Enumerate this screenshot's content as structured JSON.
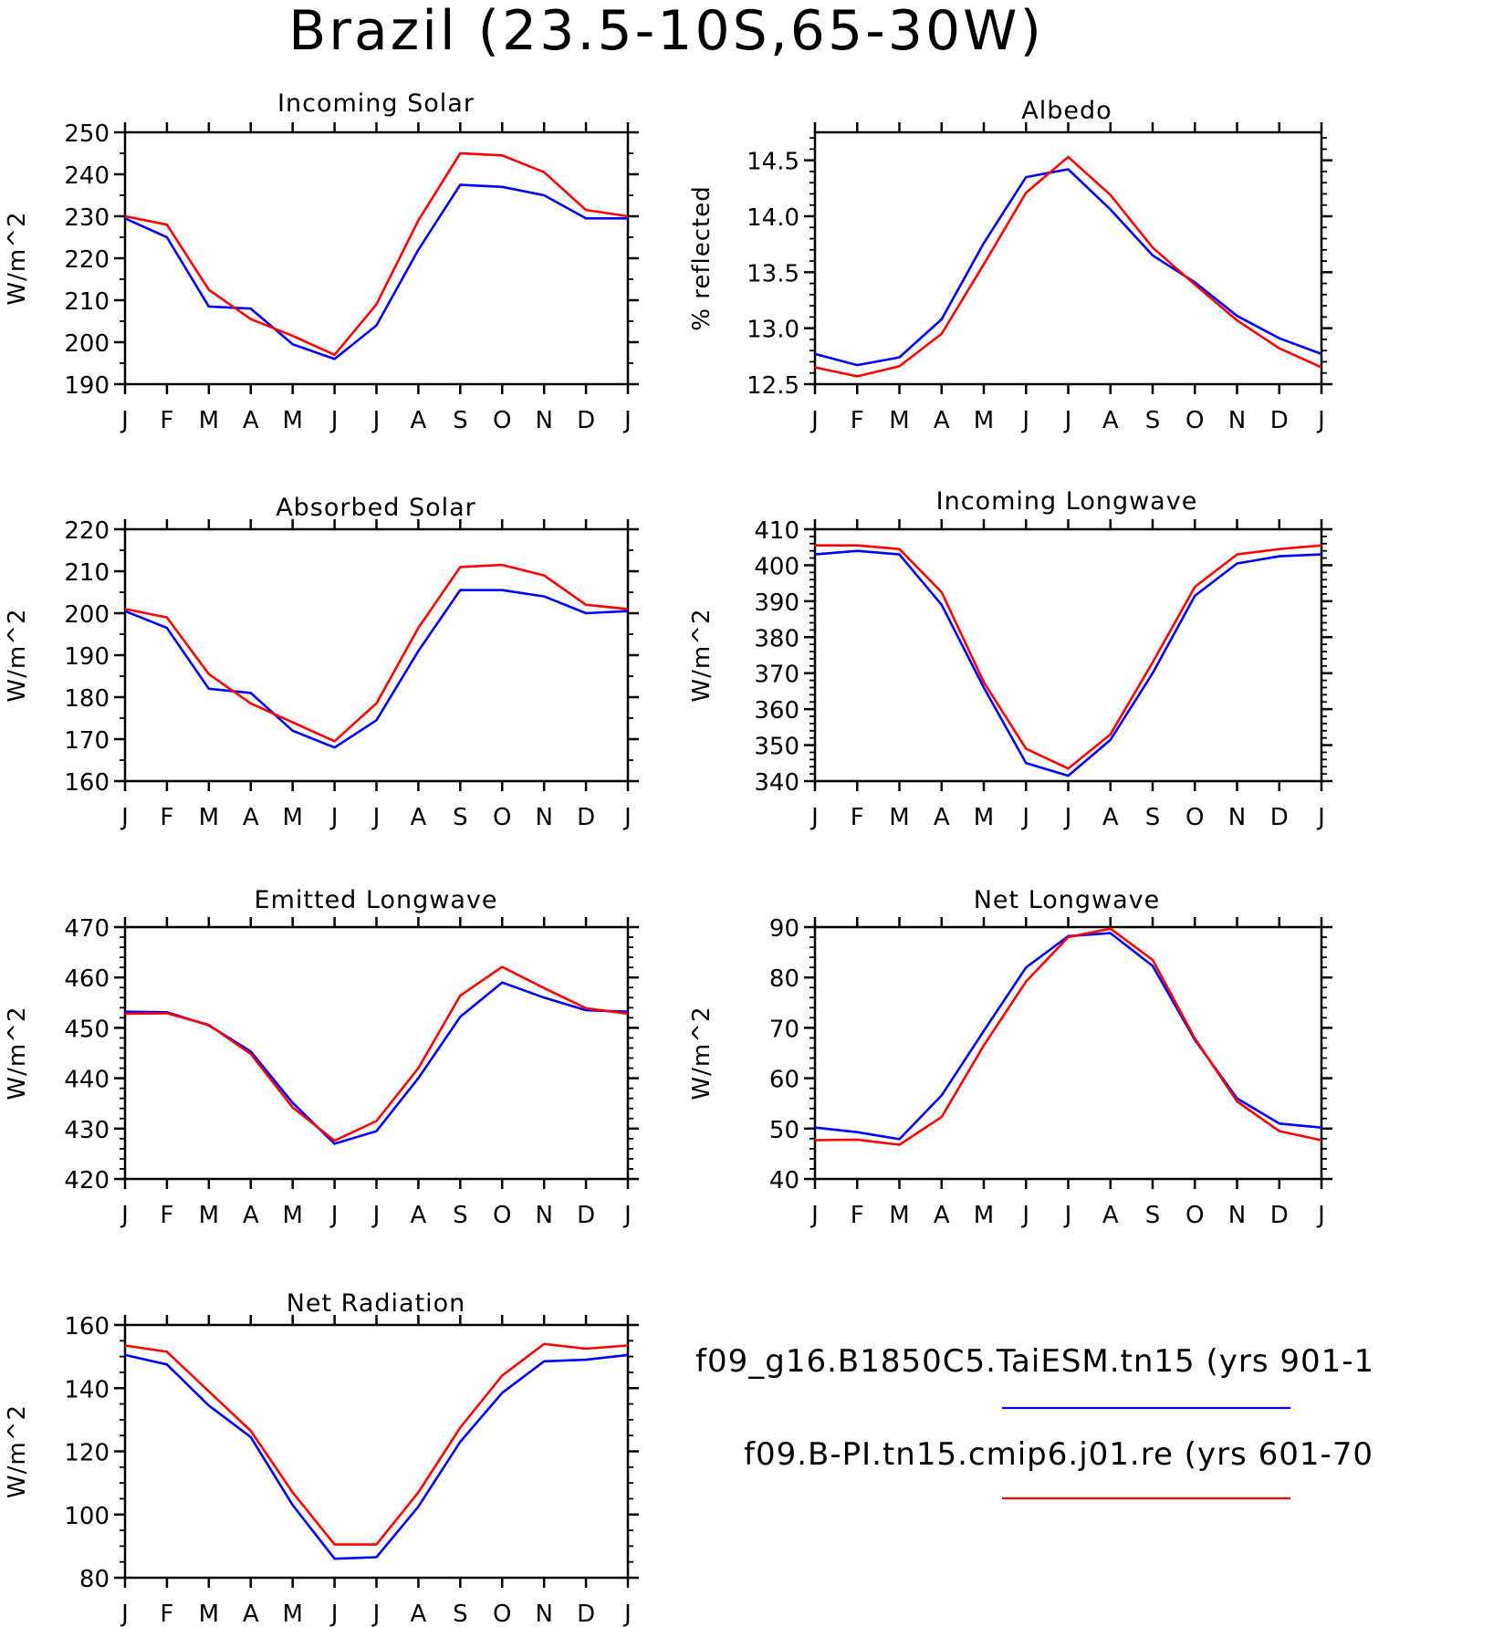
{
  "title": "Brazil (23.5-10S,65-30W)",
  "legend": [
    {
      "label": "f09_g16.B1850C5.TaiESM.tn15 (yrs 901-1",
      "color": "#0000ff"
    },
    {
      "label": "f09.B-PI.tn15.cmip6.j01.re (yrs 601-70",
      "color": "#ff0000"
    }
  ],
  "chart_data": [
    {
      "type": "line",
      "title": "Incoming Solar",
      "ylabel": "W/m^2",
      "categories": [
        "J",
        "F",
        "M",
        "A",
        "M",
        "J",
        "J",
        "A",
        "S",
        "O",
        "N",
        "D",
        "J"
      ],
      "ylim": [
        190,
        250
      ],
      "yticks": [
        "190",
        "200",
        "210",
        "220",
        "230",
        "240",
        "250"
      ],
      "yminor": 5,
      "series": [
        {
          "color": "#0000ff",
          "values": [
            229.5,
            225,
            208.5,
            208,
            199.5,
            196,
            204,
            222,
            237.5,
            237,
            235,
            229.5,
            229.5
          ]
        },
        {
          "color": "#ff0000",
          "values": [
            230,
            228,
            212.5,
            205.5,
            201.5,
            197,
            209,
            229,
            245,
            244.5,
            240.5,
            231.5,
            230
          ]
        }
      ]
    },
    {
      "type": "line",
      "title": "Albedo",
      "ylabel": "% reflected",
      "categories": [
        "J",
        "F",
        "M",
        "A",
        "M",
        "J",
        "J",
        "A",
        "S",
        "O",
        "N",
        "D",
        "J"
      ],
      "ylim": [
        12.5,
        14.75
      ],
      "yticks": [
        "12.5",
        "13.0",
        "13.5",
        "14.0",
        "14.5"
      ],
      "yminor": 0.1,
      "series": [
        {
          "color": "#0000ff",
          "values": [
            12.77,
            12.67,
            12.74,
            13.08,
            13.76,
            14.35,
            14.42,
            14.06,
            13.65,
            13.41,
            13.11,
            12.91,
            12.77
          ]
        },
        {
          "color": "#ff0000",
          "values": [
            12.65,
            12.57,
            12.66,
            12.95,
            13.57,
            14.21,
            14.53,
            14.19,
            13.72,
            13.39,
            13.07,
            12.82,
            12.65
          ]
        }
      ]
    },
    {
      "type": "line",
      "title": "Absorbed Solar",
      "ylabel": "W/m^2",
      "categories": [
        "J",
        "F",
        "M",
        "A",
        "M",
        "J",
        "J",
        "A",
        "S",
        "O",
        "N",
        "D",
        "J"
      ],
      "ylim": [
        160,
        220
      ],
      "yticks": [
        "160",
        "170",
        "180",
        "190",
        "200",
        "210",
        "220"
      ],
      "yminor": 5,
      "series": [
        {
          "color": "#0000ff",
          "values": [
            200.5,
            196.5,
            182,
            181,
            172,
            168,
            174.5,
            191,
            205.5,
            205.5,
            204,
            200,
            200.5
          ]
        },
        {
          "color": "#ff0000",
          "values": [
            201,
            199,
            185.5,
            178.5,
            174,
            169.5,
            178.5,
            196.5,
            211,
            211.5,
            209,
            202,
            201
          ]
        }
      ]
    },
    {
      "type": "line",
      "title": "Incoming Longwave",
      "ylabel": "W/m^2",
      "categories": [
        "J",
        "F",
        "M",
        "A",
        "M",
        "J",
        "J",
        "A",
        "S",
        "O",
        "N",
        "D",
        "J"
      ],
      "ylim": [
        340,
        410
      ],
      "yticks": [
        "340",
        "350",
        "360",
        "370",
        "380",
        "390",
        "400",
        "410"
      ],
      "yminor": 2,
      "series": [
        {
          "color": "#0000ff",
          "values": [
            403,
            404,
            403,
            389,
            366,
            345,
            341.5,
            351.5,
            370,
            391.5,
            400.5,
            402.5,
            403
          ]
        },
        {
          "color": "#ff0000",
          "values": [
            405.5,
            405.5,
            404.5,
            392.5,
            367.5,
            349,
            343.5,
            353,
            373,
            394,
            403,
            404.5,
            405.5
          ]
        }
      ]
    },
    {
      "type": "line",
      "title": "Emitted Longwave",
      "ylabel": "W/m^2",
      "categories": [
        "J",
        "F",
        "M",
        "A",
        "M",
        "J",
        "J",
        "A",
        "S",
        "O",
        "N",
        "D",
        "J"
      ],
      "ylim": [
        420,
        470
      ],
      "yticks": [
        "420",
        "430",
        "440",
        "450",
        "460",
        "470"
      ],
      "yminor": 2,
      "series": [
        {
          "color": "#0000ff",
          "values": [
            453.2,
            453.1,
            450.5,
            445.3,
            435.1,
            427,
            429.5,
            440,
            452.2,
            459,
            456,
            453.5,
            453.2
          ]
        },
        {
          "color": "#ff0000",
          "values": [
            452.8,
            452.9,
            450.6,
            444.8,
            434.2,
            427.6,
            431.5,
            442,
            456.4,
            462.1,
            457.9,
            453.9,
            452.8
          ]
        }
      ]
    },
    {
      "type": "line",
      "title": "Net Longwave",
      "ylabel": "W/m^2",
      "categories": [
        "J",
        "F",
        "M",
        "A",
        "M",
        "J",
        "J",
        "A",
        "S",
        "O",
        "N",
        "D",
        "J"
      ],
      "ylim": [
        40,
        90
      ],
      "yticks": [
        "40",
        "50",
        "60",
        "70",
        "80",
        "90"
      ],
      "yminor": 2,
      "series": [
        {
          "color": "#0000ff",
          "values": [
            50.2,
            49.3,
            47.9,
            56.6,
            69.4,
            82,
            88.2,
            88.8,
            82.3,
            67.6,
            56,
            51,
            50.2
          ]
        },
        {
          "color": "#ff0000",
          "values": [
            47.7,
            47.8,
            46.8,
            52.3,
            66.5,
            79.2,
            88,
            89.7,
            83.5,
            67.9,
            55.4,
            49.5,
            47.7
          ]
        }
      ]
    },
    {
      "type": "line",
      "title": "Net Radiation",
      "ylabel": "W/m^2",
      "categories": [
        "J",
        "F",
        "M",
        "A",
        "M",
        "J",
        "J",
        "A",
        "S",
        "O",
        "N",
        "D",
        "J"
      ],
      "ylim": [
        80,
        160
      ],
      "yticks": [
        "80",
        "100",
        "120",
        "140",
        "160"
      ],
      "yminor": 5,
      "series": [
        {
          "color": "#0000ff",
          "values": [
            150.5,
            147.5,
            134.5,
            124.5,
            103,
            86,
            86.5,
            102.5,
            123,
            138.5,
            148.5,
            149,
            150.5
          ]
        },
        {
          "color": "#ff0000",
          "values": [
            153.5,
            151.5,
            139,
            126.5,
            107,
            90.5,
            90.5,
            107,
            127.5,
            144,
            154,
            152.5,
            153.5
          ]
        }
      ]
    }
  ]
}
